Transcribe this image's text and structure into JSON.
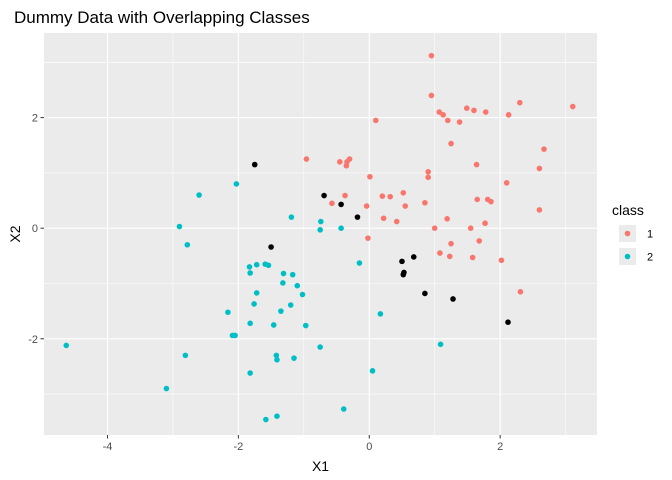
{
  "chart_data": {
    "type": "scatter",
    "title": "Dummy Data with Overlapping Classes",
    "xlabel": "X1",
    "ylabel": "X2",
    "xlim": [
      -4.97,
      3.48
    ],
    "ylim": [
      -3.74,
      3.53
    ],
    "x_ticks": [
      -4,
      -2,
      0,
      2
    ],
    "y_ticks": [
      -2,
      0,
      2
    ],
    "grid": true,
    "legend": {
      "title": "class",
      "placement": "right",
      "entries": [
        "1",
        "2"
      ]
    },
    "colors": {
      "1": "#F8766D",
      "2": "#00BFC4",
      "misclassified": "#000000",
      "panel": "#EBEBEB",
      "grid": "#FFFFFF"
    },
    "series": [
      {
        "name": "1",
        "color": "#F8766D",
        "points": [
          [
            0.95,
            3.12
          ],
          [
            0.95,
            2.4
          ],
          [
            1.49,
            2.17
          ],
          [
            1.6,
            2.13
          ],
          [
            1.78,
            2.1
          ],
          [
            2.3,
            2.27
          ],
          [
            3.11,
            2.2
          ],
          [
            2.13,
            2.05
          ],
          [
            1.07,
            2.1
          ],
          [
            1.13,
            2.05
          ],
          [
            0.1,
            1.95
          ],
          [
            1.2,
            1.95
          ],
          [
            1.38,
            1.92
          ],
          [
            1.25,
            1.53
          ],
          [
            2.67,
            1.43
          ],
          [
            -0.96,
            1.25
          ],
          [
            -0.3,
            1.25
          ],
          [
            -0.34,
            1.2
          ],
          [
            -0.45,
            1.2
          ],
          [
            -0.35,
            1.13
          ],
          [
            1.64,
            1.15
          ],
          [
            2.6,
            1.08
          ],
          [
            0.9,
            1.02
          ],
          [
            0.9,
            0.92
          ],
          [
            0.01,
            0.93
          ],
          [
            2.1,
            0.82
          ],
          [
            0.2,
            0.58
          ],
          [
            0.32,
            0.57
          ],
          [
            0.52,
            0.64
          ],
          [
            1.65,
            0.52
          ],
          [
            1.81,
            0.52
          ],
          [
            1.86,
            0.48
          ],
          [
            -0.37,
            0.59
          ],
          [
            -0.57,
            0.45
          ],
          [
            0.85,
            0.46
          ],
          [
            0.55,
            0.4
          ],
          [
            -0.04,
            0.4
          ],
          [
            2.6,
            0.33
          ],
          [
            0.22,
            0.18
          ],
          [
            1.19,
            0.17
          ],
          [
            1.77,
            0.09
          ],
          [
            0.42,
            0.12
          ],
          [
            1.0,
            0.0
          ],
          [
            1.55,
            0.0
          ],
          [
            -0.02,
            -0.18
          ],
          [
            1.68,
            -0.23
          ],
          [
            1.25,
            -0.28
          ],
          [
            1.08,
            -0.45
          ],
          [
            1.23,
            -0.51
          ],
          [
            1.58,
            -0.53
          ],
          [
            2.02,
            -0.58
          ],
          [
            2.31,
            -1.15
          ]
        ]
      },
      {
        "name": "2",
        "color": "#00BFC4",
        "points": [
          [
            -2.03,
            0.8
          ],
          [
            -2.6,
            0.6
          ],
          [
            -1.19,
            0.2
          ],
          [
            -0.74,
            0.12
          ],
          [
            -2.9,
            0.03
          ],
          [
            -0.43,
            0.0
          ],
          [
            -0.75,
            -0.03
          ],
          [
            -2.78,
            -0.3
          ],
          [
            -0.15,
            -0.63
          ],
          [
            -1.59,
            -0.65
          ],
          [
            -1.72,
            -0.66
          ],
          [
            -1.54,
            -0.67
          ],
          [
            -1.83,
            -0.7
          ],
          [
            -1.31,
            -0.82
          ],
          [
            -1.82,
            -0.81
          ],
          [
            -1.17,
            -0.84
          ],
          [
            -1.32,
            -0.99
          ],
          [
            -1.1,
            -1.04
          ],
          [
            -1.72,
            -1.17
          ],
          [
            -1.02,
            -1.2
          ],
          [
            -1.76,
            -1.37
          ],
          [
            -1.2,
            -1.39
          ],
          [
            -1.35,
            -1.5
          ],
          [
            -2.16,
            -1.52
          ],
          [
            0.17,
            -1.55
          ],
          [
            -1.82,
            -1.72
          ],
          [
            -1.46,
            -1.75
          ],
          [
            -0.97,
            -1.76
          ],
          [
            -2.05,
            -1.94
          ],
          [
            -2.09,
            -1.94
          ],
          [
            1.09,
            -2.1
          ],
          [
            -0.75,
            -2.15
          ],
          [
            -4.63,
            -2.12
          ],
          [
            -2.81,
            -2.3
          ],
          [
            -1.42,
            -2.3
          ],
          [
            -1.41,
            -2.38
          ],
          [
            -1.15,
            -2.35
          ],
          [
            0.05,
            -2.58
          ],
          [
            -1.82,
            -2.62
          ],
          [
            -3.1,
            -2.9
          ],
          [
            -0.39,
            -3.27
          ],
          [
            -1.41,
            -3.4
          ],
          [
            -1.58,
            -3.46
          ]
        ]
      },
      {
        "name": "",
        "color": "#000000",
        "points": [
          [
            -1.75,
            1.15
          ],
          [
            -0.69,
            0.59
          ],
          [
            -0.43,
            0.43
          ],
          [
            -0.18,
            0.2
          ],
          [
            -1.5,
            -0.34
          ],
          [
            0.5,
            -0.6
          ],
          [
            0.68,
            -0.52
          ],
          [
            0.53,
            -0.8
          ],
          [
            0.52,
            -0.84
          ],
          [
            0.85,
            -1.18
          ],
          [
            1.28,
            -1.28
          ],
          [
            2.12,
            -1.7
          ]
        ]
      }
    ]
  }
}
